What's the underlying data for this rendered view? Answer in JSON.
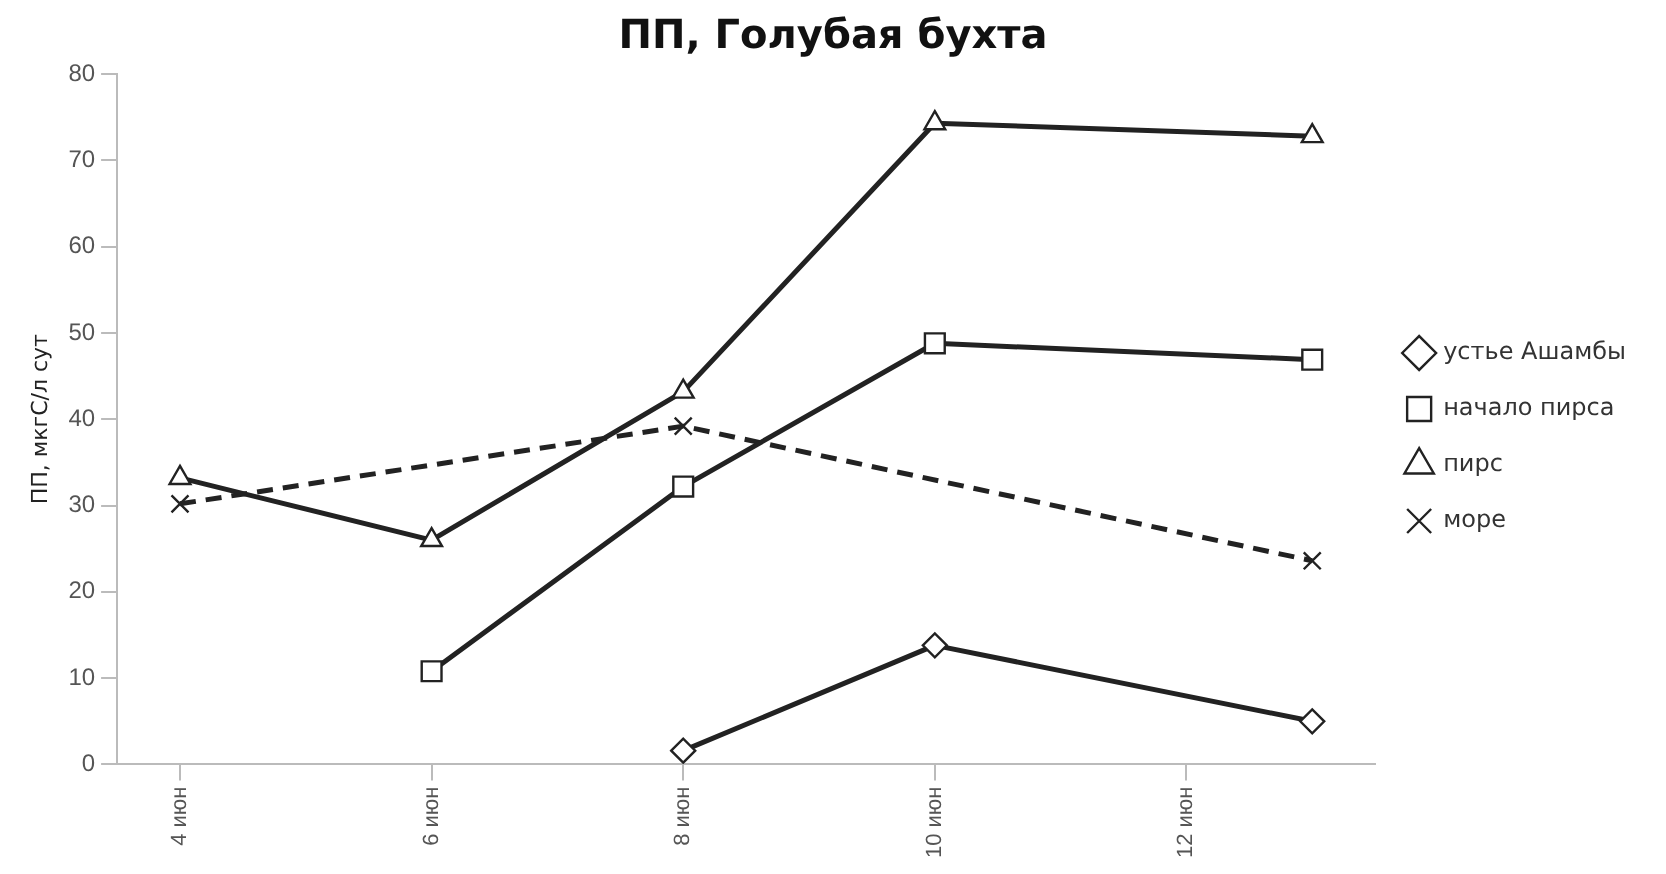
{
  "chart_data": {
    "type": "line",
    "title": "ПП, Голубая бухта",
    "ylabel": "ПП, мкгС/л сут",
    "xlim": [
      "--06-03T12:00",
      "--06-13T12:00"
    ],
    "xticks": [
      {
        "value": "--06-04",
        "label": "4 июн"
      },
      {
        "value": "--06-06",
        "label": "6 июн"
      },
      {
        "value": "--06-08",
        "label": "8 июн"
      },
      {
        "value": "--06-10",
        "label": "10 июн"
      },
      {
        "value": "--06-12",
        "label": "12 июн"
      }
    ],
    "ylim": [
      0,
      80
    ],
    "yticks": [
      0,
      10,
      20,
      30,
      40,
      50,
      60,
      70,
      80
    ],
    "grid": false,
    "legend": "right",
    "series": [
      {
        "name": "устье Ашамбы",
        "color": "#222222",
        "marker": "diamond",
        "line_style": "solid",
        "x": [
          "--06-08",
          "--06-10",
          "--06-13"
        ],
        "values": [
          1.6,
          13.8,
          5.0
        ]
      },
      {
        "name": "начало пирса",
        "color": "#222222",
        "marker": "square",
        "line_style": "solid",
        "x": [
          "--06-06",
          "--06-08",
          "--06-10",
          "--06-13"
        ],
        "values": [
          10.8,
          32.2,
          48.8,
          46.9
        ]
      },
      {
        "name": "пирс",
        "color": "#222222",
        "marker": "triangle",
        "line_style": "solid",
        "x": [
          "--06-04",
          "--06-06",
          "--06-08",
          "--06-10",
          "--06-13"
        ],
        "values": [
          33.2,
          26,
          43.2,
          74.3,
          72.8
        ]
      },
      {
        "name": "море",
        "color": "#222222",
        "marker": "cross",
        "line_style": "dashed",
        "x": [
          "--06-04",
          "--06-08",
          "--06-13"
        ],
        "values": [
          30.2,
          39.2,
          23.6
        ]
      }
    ]
  }
}
